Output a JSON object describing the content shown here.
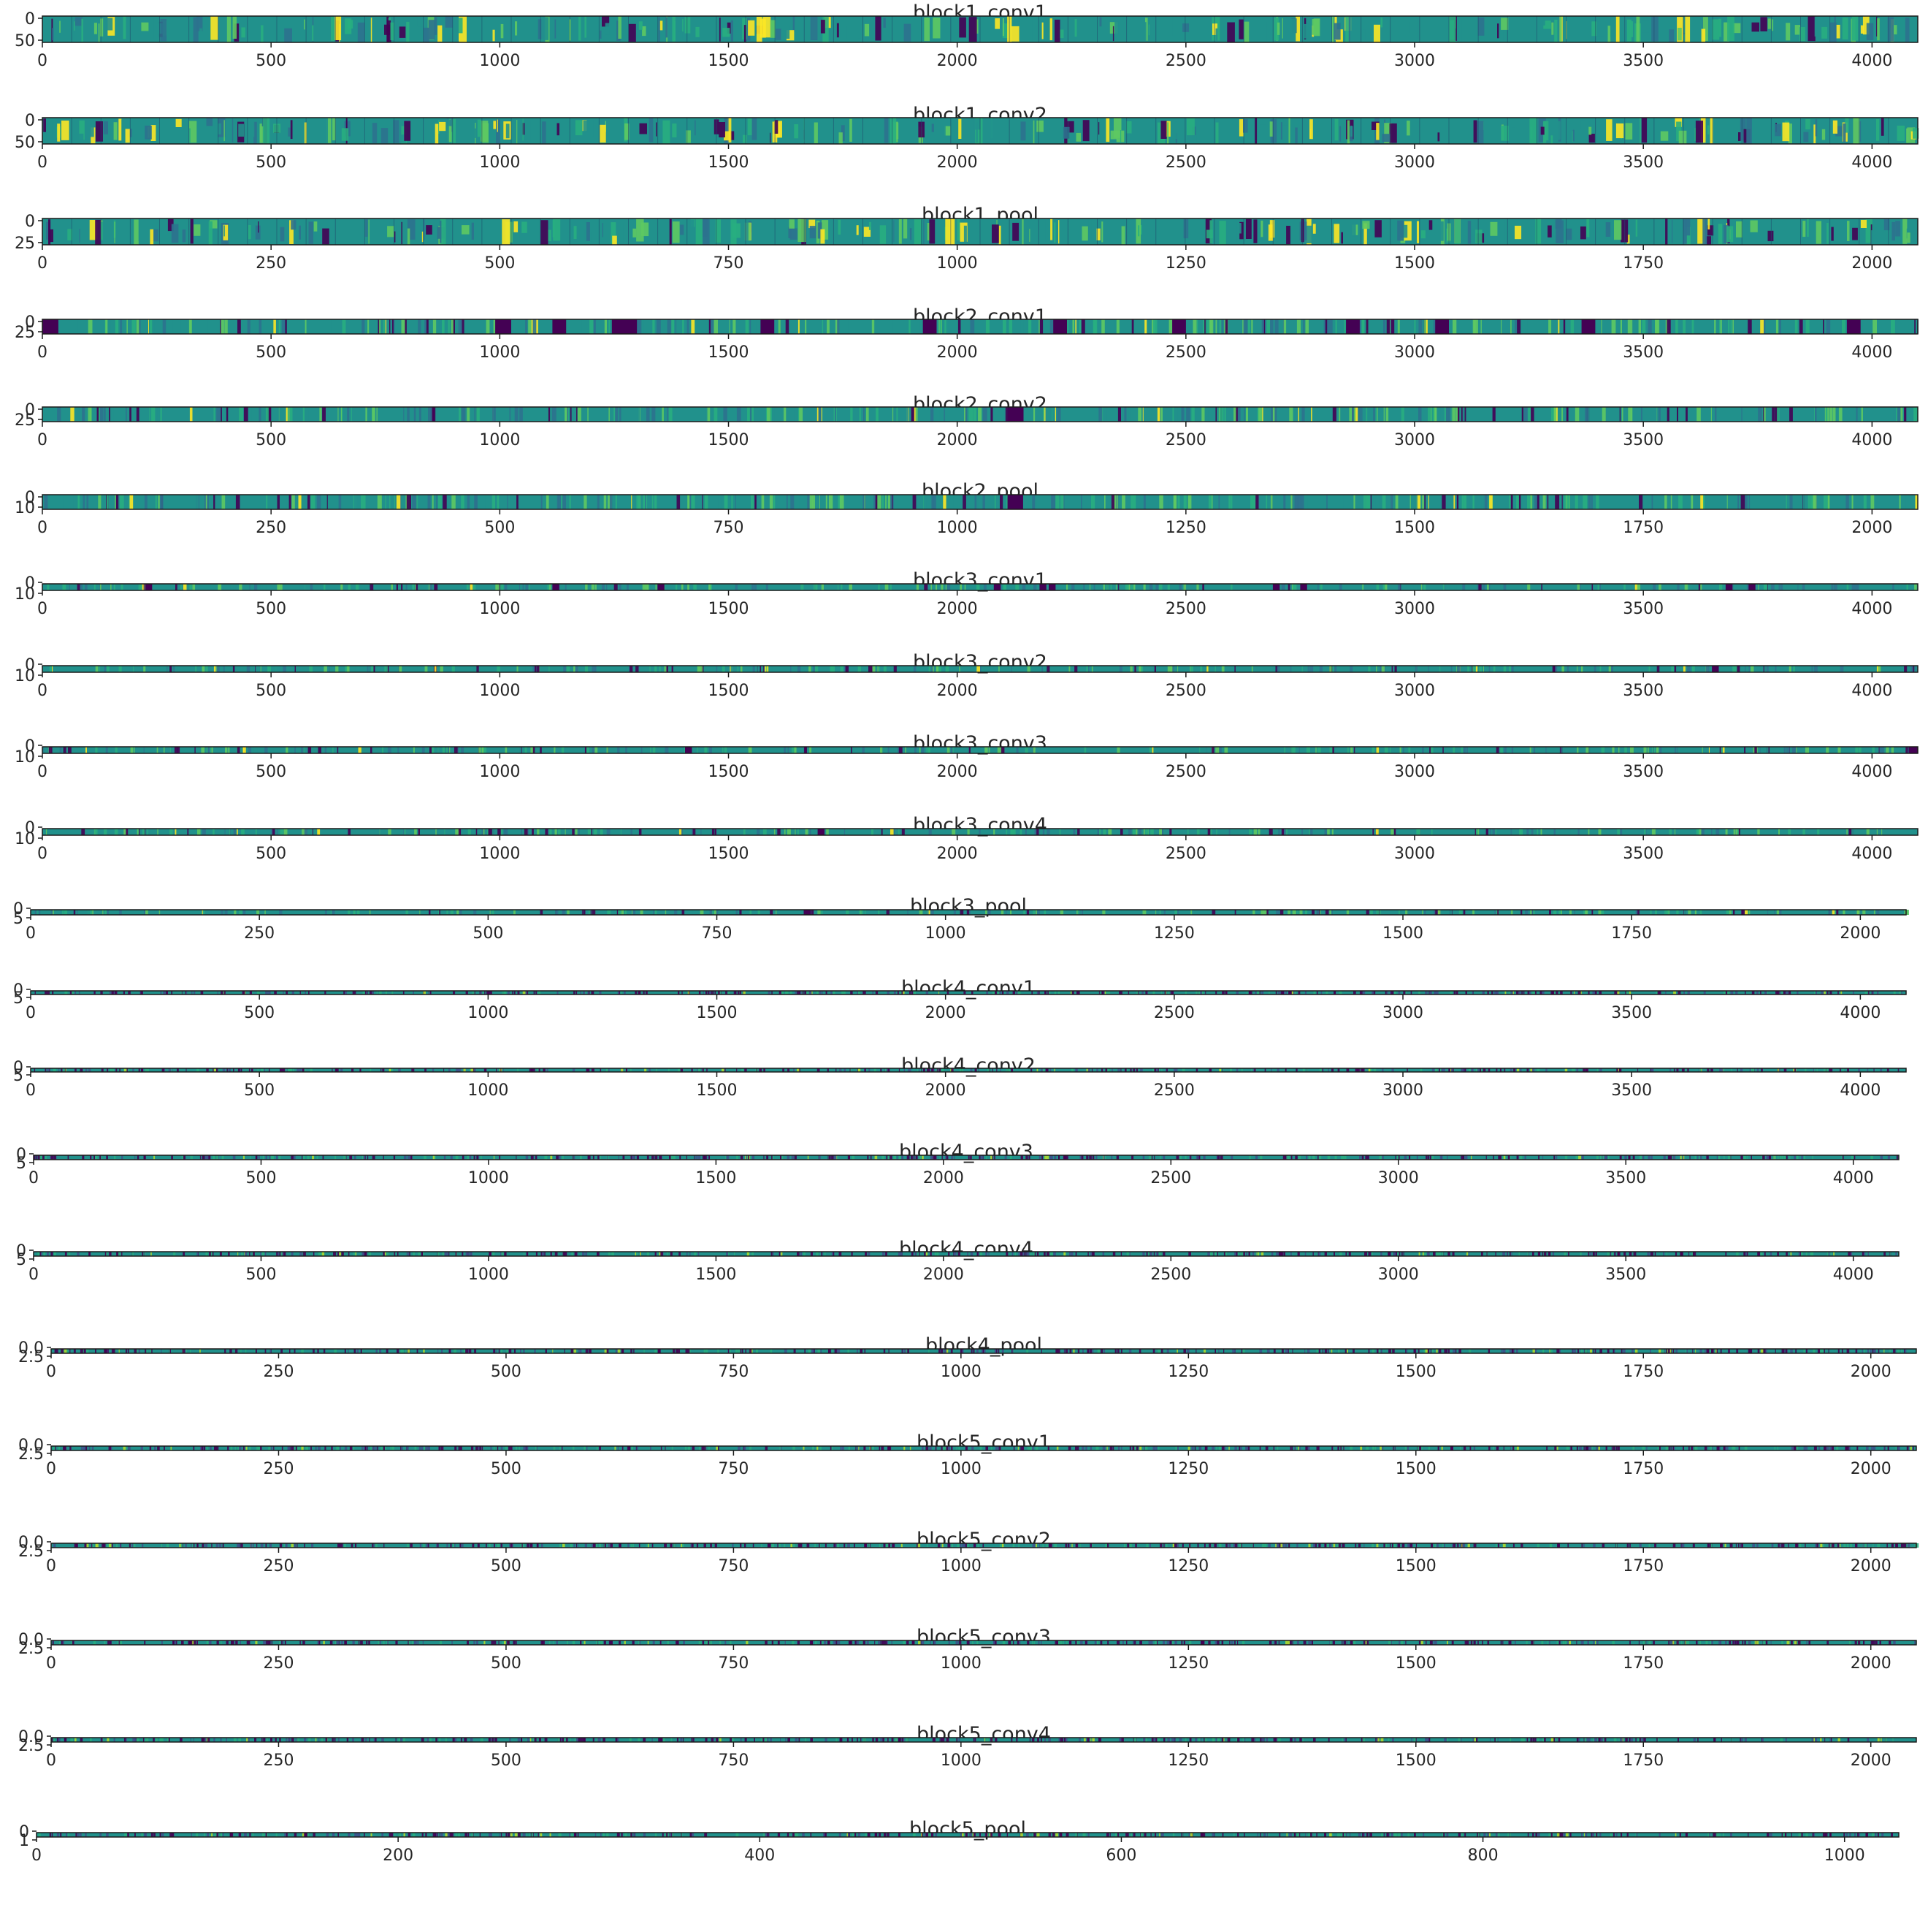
{
  "figure": {
    "colors": {
      "background": "#ffffff",
      "text": "#262626",
      "frame": "#1a1a1a",
      "viridis_low": "#440154",
      "viridis_mid": "#21918c",
      "viridis_high": "#fde725"
    }
  },
  "chart_data": [
    {
      "type": "heatmap",
      "title": "block1_conv1",
      "xticks": [
        0,
        500,
        1000,
        1500,
        2000,
        2500,
        3000,
        3500,
        4000
      ],
      "yticks": [
        "0",
        "50"
      ],
      "xlim": [
        0,
        4100
      ],
      "grid": false,
      "style": "rich",
      "dark_x": []
    },
    {
      "type": "heatmap",
      "title": "block1_conv2",
      "xticks": [
        0,
        500,
        1000,
        1500,
        2000,
        2500,
        3000,
        3500,
        4000
      ],
      "yticks": [
        "0",
        "50"
      ],
      "xlim": [
        0,
        4100
      ],
      "grid": false,
      "style": "rich",
      "dark_x": []
    },
    {
      "type": "heatmap",
      "title": "block1_pool",
      "xticks": [
        0,
        250,
        500,
        750,
        1000,
        1250,
        1500,
        1750,
        2000
      ],
      "yticks": [
        "0",
        "25"
      ],
      "xlim": [
        0,
        2050
      ],
      "grid": false,
      "style": "rich",
      "dark_x": []
    },
    {
      "type": "heatmap",
      "title": "block2_conv1",
      "xticks": [
        0,
        500,
        1000,
        1500,
        2000,
        2500,
        3000,
        3500,
        4000
      ],
      "yticks": [
        "0",
        "25"
      ],
      "xlim": [
        0,
        4100
      ],
      "grid": false,
      "style": "medium",
      "dark_x": [
        [
          0,
          35
        ],
        [
          990,
          1025
        ],
        [
          1115,
          1145
        ],
        [
          1245,
          1300
        ],
        [
          1570,
          1600
        ],
        [
          1925,
          1955
        ],
        [
          2210,
          2240
        ],
        [
          2470,
          2500
        ],
        [
          2850,
          2880
        ],
        [
          3045,
          3075
        ],
        [
          3365,
          3395
        ],
        [
          3945,
          3975
        ]
      ]
    },
    {
      "type": "heatmap",
      "title": "block2_conv2",
      "xticks": [
        0,
        500,
        1000,
        1500,
        2000,
        2500,
        3000,
        3500,
        4000
      ],
      "yticks": [
        "0",
        "25"
      ],
      "xlim": [
        0,
        4100
      ],
      "grid": false,
      "style": "medium",
      "dark_x": [
        [
          2110,
          2145
        ]
      ]
    },
    {
      "type": "heatmap",
      "title": "block2_pool",
      "xticks": [
        0,
        250,
        500,
        750,
        1000,
        1250,
        1500,
        1750,
        2000
      ],
      "yticks": [
        "0",
        "10"
      ],
      "xlim": [
        0,
        2050
      ],
      "grid": false,
      "style": "medium",
      "dark_x": [
        [
          1055,
          1072
        ]
      ]
    },
    {
      "type": "heatmap",
      "title": "block3_conv1",
      "xticks": [
        0,
        500,
        1000,
        1500,
        2000,
        2500,
        3000,
        3500,
        4000
      ],
      "yticks": [
        "0",
        "10"
      ],
      "xlim": [
        0,
        4100
      ],
      "grid": false,
      "style": "thin",
      "dark_x": [
        [
          225,
          240
        ],
        [
          1115,
          1130
        ],
        [
          1345,
          1360
        ],
        [
          2080,
          2095
        ],
        [
          2180,
          2195
        ],
        [
          2200,
          2215
        ],
        [
          2690,
          2705
        ],
        [
          2750,
          2765
        ],
        [
          3680,
          3695
        ],
        [
          3730,
          3745
        ]
      ]
    },
    {
      "type": "heatmap",
      "title": "block3_conv2",
      "xticks": [
        0,
        500,
        1000,
        1500,
        2000,
        2500,
        3000,
        3500,
        4000
      ],
      "yticks": [
        "0",
        "10"
      ],
      "xlim": [
        0,
        4100
      ],
      "grid": false,
      "style": "thin",
      "dark_x": [
        [
          3650,
          3665
        ]
      ]
    },
    {
      "type": "heatmap",
      "title": "block3_conv3",
      "xticks": [
        0,
        500,
        1000,
        1500,
        2000,
        2500,
        3000,
        3500,
        4000
      ],
      "yticks": [
        "0",
        "10"
      ],
      "xlim": [
        0,
        4100
      ],
      "grid": false,
      "style": "thin",
      "dark_x": [
        [
          1405,
          1420
        ],
        [
          4080,
          4100
        ]
      ]
    },
    {
      "type": "heatmap",
      "title": "block3_conv4",
      "xticks": [
        0,
        500,
        1000,
        1500,
        2000,
        2500,
        3000,
        3500,
        4000
      ],
      "yticks": [
        "0",
        "10"
      ],
      "xlim": [
        0,
        4100
      ],
      "grid": false,
      "style": "thin",
      "dark_x": [
        [
          1695,
          1710
        ]
      ]
    },
    {
      "type": "heatmap",
      "title": "block3_pool",
      "xticks": [
        0,
        250,
        500,
        750,
        1000,
        1250,
        1500,
        1750,
        2000
      ],
      "yticks": [
        "0",
        "5"
      ],
      "xlim": [
        0,
        2050
      ],
      "grid": false,
      "style": "thin",
      "dark_x": [
        [
          845,
          853
        ]
      ]
    },
    {
      "type": "heatmap",
      "title": "block4_conv1",
      "xticks": [
        0,
        500,
        1000,
        1500,
        2000,
        2500,
        3000,
        3500,
        4000
      ],
      "yticks": [
        "0",
        "5"
      ],
      "xlim": [
        0,
        4100
      ],
      "grid": false,
      "style": "line",
      "dark_x": []
    },
    {
      "type": "heatmap",
      "title": "block4_conv2",
      "xticks": [
        0,
        500,
        1000,
        1500,
        2000,
        2500,
        3000,
        3500,
        4000
      ],
      "yticks": [
        "0",
        "5"
      ],
      "xlim": [
        0,
        4100
      ],
      "grid": false,
      "style": "line",
      "dark_x": []
    },
    {
      "type": "heatmap",
      "title": "block4_conv3",
      "xticks": [
        0,
        500,
        1000,
        1500,
        2000,
        2500,
        3000,
        3500,
        4000
      ],
      "yticks": [
        "0",
        "5"
      ],
      "xlim": [
        0,
        4100
      ],
      "grid": false,
      "style": "line",
      "dark_x": []
    },
    {
      "type": "heatmap",
      "title": "block4_conv4",
      "xticks": [
        0,
        500,
        1000,
        1500,
        2000,
        2500,
        3000,
        3500,
        4000
      ],
      "yticks": [
        "0",
        "5"
      ],
      "xlim": [
        0,
        4100
      ],
      "grid": false,
      "style": "line",
      "dark_x": []
    },
    {
      "type": "heatmap",
      "title": "block4_pool",
      "xticks": [
        0,
        250,
        500,
        750,
        1000,
        1250,
        1500,
        1750,
        2000
      ],
      "yticks": [
        "0.0",
        "2.5"
      ],
      "xlim": [
        0,
        2050
      ],
      "grid": false,
      "style": "line",
      "dark_x": []
    },
    {
      "type": "heatmap",
      "title": "block5_conv1",
      "xticks": [
        0,
        250,
        500,
        750,
        1000,
        1250,
        1500,
        1750,
        2000
      ],
      "yticks": [
        "0.0",
        "2.5"
      ],
      "xlim": [
        0,
        2050
      ],
      "grid": false,
      "style": "line",
      "dark_x": []
    },
    {
      "type": "heatmap",
      "title": "block5_conv2",
      "xticks": [
        0,
        250,
        500,
        750,
        1000,
        1250,
        1500,
        1750,
        2000
      ],
      "yticks": [
        "0.0",
        "2.5"
      ],
      "xlim": [
        0,
        2050
      ],
      "grid": false,
      "style": "line",
      "dark_x": []
    },
    {
      "type": "heatmap",
      "title": "block5_conv3",
      "xticks": [
        0,
        250,
        500,
        750,
        1000,
        1250,
        1500,
        1750,
        2000
      ],
      "yticks": [
        "0.0",
        "2.5"
      ],
      "xlim": [
        0,
        2050
      ],
      "grid": false,
      "style": "line",
      "dark_x": []
    },
    {
      "type": "heatmap",
      "title": "block5_conv4",
      "xticks": [
        0,
        250,
        500,
        750,
        1000,
        1250,
        1500,
        1750,
        2000
      ],
      "yticks": [
        "0.0",
        "2.5"
      ],
      "xlim": [
        0,
        2050
      ],
      "grid": false,
      "style": "line",
      "dark_x": []
    },
    {
      "type": "heatmap",
      "title": "block5_pool",
      "xticks": [
        0,
        200,
        400,
        600,
        800,
        1000
      ],
      "yticks": [
        "0",
        "1"
      ],
      "xlim": [
        0,
        1030
      ],
      "grid": false,
      "style": "line",
      "dark_x": []
    }
  ]
}
